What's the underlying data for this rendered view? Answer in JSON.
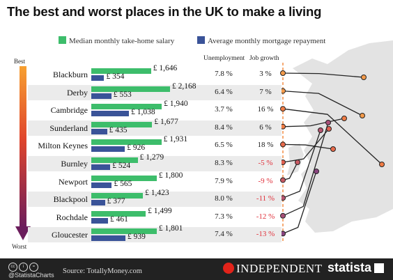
{
  "title": "The best and worst places in the UK to make a living",
  "legend": [
    {
      "label": "Median monthly take-home salary",
      "color": "#3dbd6b"
    },
    {
      "label": "Average monthly mortgage repayment",
      "color": "#3a5398"
    }
  ],
  "headers": {
    "unemployment": "Unemployment",
    "job_growth": "Job growth"
  },
  "rank": {
    "best": "Best",
    "worst": "Worst"
  },
  "footer": {
    "credit": "@StatistaCharts",
    "source": "Source: TotallyMoney.com",
    "independent": "INDEPENDENT",
    "statista": "statista"
  },
  "chart_data": {
    "type": "bar",
    "title": "The best and worst places in the UK to make a living",
    "series": [
      {
        "name": "Median monthly take-home salary",
        "color": "#3dbd6b",
        "values": [
          1646,
          2168,
          1940,
          1677,
          1931,
          1279,
          1800,
          1423,
          1499,
          1801
        ]
      },
      {
        "name": "Average monthly mortgage repayment",
        "color": "#3a5398",
        "values": [
          354,
          553,
          1038,
          435,
          926,
          524,
          565,
          377,
          461,
          939
        ]
      }
    ],
    "rows": [
      {
        "city": "Blackburn",
        "salary": "£ 1,646",
        "mortgage": "£ 354",
        "unemployment": "7.8 %",
        "job_growth": "3 %",
        "negative": false
      },
      {
        "city": "Derby",
        "salary": "£ 2,168",
        "mortgage": "£ 553",
        "unemployment": "6.4 %",
        "job_growth": "7 %",
        "negative": false
      },
      {
        "city": "Cambridge",
        "salary": "£ 1,940",
        "mortgage": "£ 1,038",
        "unemployment": "3.7 %",
        "job_growth": "16 %",
        "negative": false
      },
      {
        "city": "Sunderland",
        "salary": "£ 1,677",
        "mortgage": "£ 435",
        "unemployment": "8.4 %",
        "job_growth": "6 %",
        "negative": false
      },
      {
        "city": "Milton Keynes",
        "salary": "£ 1,931",
        "mortgage": "£ 926",
        "unemployment": "6.5 %",
        "job_growth": "18 %",
        "negative": false
      },
      {
        "city": "Burnley",
        "salary": "£ 1,279",
        "mortgage": "£ 524",
        "unemployment": "8.3 %",
        "job_growth": "-5 %",
        "negative": true
      },
      {
        "city": "Newport",
        "salary": "£ 1,800",
        "mortgage": "£ 565",
        "unemployment": "7.9 %",
        "job_growth": "-9 %",
        "negative": true
      },
      {
        "city": "Blackpool",
        "salary": "£ 1,423",
        "mortgage": "£ 377",
        "unemployment": "8.0 %",
        "job_growth": "-11 %",
        "negative": true
      },
      {
        "city": "Rochdale",
        "salary": "£ 1,499",
        "mortgage": "£ 461",
        "unemployment": "7.3 %",
        "job_growth": "-12 %",
        "negative": true
      },
      {
        "city": "Gloucester",
        "salary": "£ 1,801",
        "mortgage": "£ 939",
        "unemployment": "7.4 %",
        "job_growth": "-13 %",
        "negative": true
      }
    ]
  }
}
